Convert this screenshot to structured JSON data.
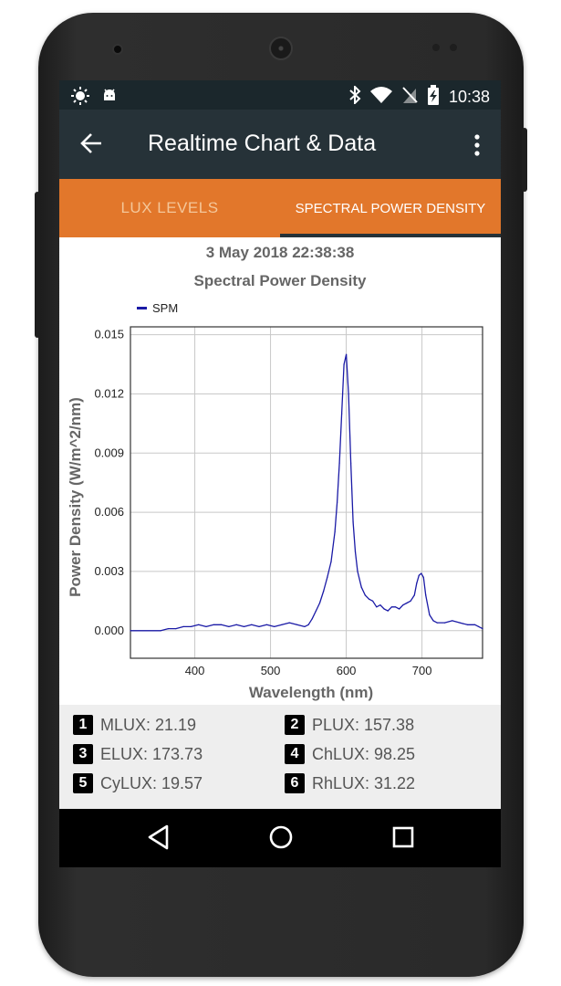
{
  "status_bar": {
    "time": "10:38",
    "left_icons": [
      "brightness-icon",
      "android-icon"
    ],
    "right_icons": [
      "bluetooth-icon",
      "wifi-icon",
      "no-sim-icon",
      "battery-charging-icon"
    ]
  },
  "app_bar": {
    "title": "Realtime Chart & Data",
    "background": "#263238"
  },
  "tabs": [
    {
      "label": "LUX LEVELS",
      "selected": false
    },
    {
      "label": "SPECTRAL POWER DENSITY",
      "selected": true
    }
  ],
  "accent_color": "#e2772b",
  "timestamp": "3 May 2018 22:38:38",
  "chart_data": {
    "type": "line",
    "title": "Spectral Power Density",
    "xlabel": "Wavelength (nm)",
    "ylabel": "Power Density (W/m^2/nm)",
    "legend": {
      "position": "top-left",
      "entries": [
        "SPM"
      ]
    },
    "xlim": [
      315,
      780
    ],
    "ylim": [
      -0.0014,
      0.0154
    ],
    "xticks": [
      400,
      500,
      600,
      700
    ],
    "yticks": [
      0.0,
      0.003,
      0.006,
      0.009,
      0.012,
      0.015
    ],
    "ytick_labels": [
      "0.000",
      "0.003",
      "0.006",
      "0.009",
      "0.012",
      "0.015"
    ],
    "grid": true,
    "series": [
      {
        "name": "SPM",
        "color": "#1a1aa6",
        "x": [
          315,
          355,
          365,
          375,
          385,
          395,
          405,
          415,
          425,
          435,
          445,
          455,
          465,
          475,
          485,
          495,
          505,
          515,
          525,
          535,
          545,
          550,
          555,
          560,
          565,
          570,
          575,
          580,
          585,
          588,
          591,
          594,
          597,
          600,
          603,
          606,
          609,
          612,
          615,
          620,
          625,
          630,
          635,
          640,
          645,
          650,
          655,
          660,
          665,
          670,
          675,
          680,
          685,
          690,
          693,
          696,
          699,
          702,
          705,
          710,
          715,
          720,
          730,
          740,
          750,
          760,
          770,
          775,
          780
        ],
        "y": [
          0.0,
          0.0,
          0.0001,
          0.0001,
          0.0002,
          0.0002,
          0.0003,
          0.0002,
          0.0003,
          0.0003,
          0.0002,
          0.0003,
          0.0002,
          0.0003,
          0.0002,
          0.0003,
          0.0002,
          0.0003,
          0.0004,
          0.0003,
          0.0002,
          0.0003,
          0.0006,
          0.001,
          0.0014,
          0.002,
          0.0027,
          0.0035,
          0.005,
          0.0065,
          0.0085,
          0.011,
          0.0135,
          0.014,
          0.012,
          0.0085,
          0.0055,
          0.004,
          0.003,
          0.0022,
          0.0018,
          0.0016,
          0.0015,
          0.0012,
          0.0013,
          0.0011,
          0.001,
          0.0012,
          0.0012,
          0.0011,
          0.0013,
          0.0014,
          0.0015,
          0.0018,
          0.0024,
          0.0028,
          0.0029,
          0.0027,
          0.0018,
          0.0008,
          0.0005,
          0.0004,
          0.0004,
          0.0005,
          0.0004,
          0.0003,
          0.0003,
          0.0002,
          0.0001
        ]
      }
    ]
  },
  "lux_readings": [
    {
      "badge": "1",
      "text": "MLUX: 21.19"
    },
    {
      "badge": "2",
      "text": "PLUX: 157.38"
    },
    {
      "badge": "3",
      "text": "ELUX: 173.73"
    },
    {
      "badge": "4",
      "text": "ChLUX: 98.25"
    },
    {
      "badge": "5",
      "text": "CyLUX: 19.57"
    },
    {
      "badge": "6",
      "text": "RhLUX: 31.22"
    }
  ],
  "nav_bar": [
    "back-icon",
    "home-icon",
    "recents-icon"
  ]
}
